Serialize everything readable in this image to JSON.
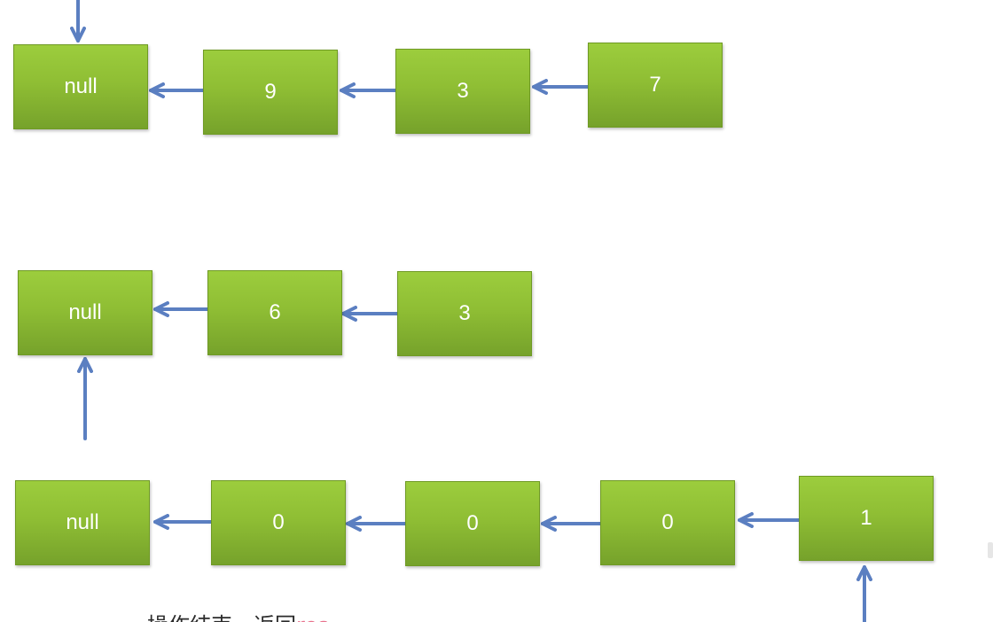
{
  "diagram": {
    "lists": [
      {
        "id": "list-1",
        "nodes": [
          {
            "id": "l1-n0",
            "label": "null"
          },
          {
            "id": "l1-n1",
            "label": "9"
          },
          {
            "id": "l1-n2",
            "label": "3"
          },
          {
            "id": "l1-n3",
            "label": "7"
          }
        ]
      },
      {
        "id": "list-2",
        "nodes": [
          {
            "id": "l2-n0",
            "label": "null"
          },
          {
            "id": "l2-n1",
            "label": "6"
          },
          {
            "id": "l2-n2",
            "label": "3"
          }
        ]
      },
      {
        "id": "list-3",
        "nodes": [
          {
            "id": "l3-n0",
            "label": "null"
          },
          {
            "id": "l3-n1",
            "label": "0"
          },
          {
            "id": "l3-n2",
            "label": "0"
          },
          {
            "id": "l3-n3",
            "label": "0"
          },
          {
            "id": "l3-n4",
            "label": "1"
          }
        ]
      }
    ],
    "colors": {
      "node_fill": "#8fbe34",
      "node_text": "#ffffff",
      "arrow": "#5b7fc1"
    }
  },
  "caption": {
    "text": "操作结束，返回",
    "highlight": "res"
  }
}
